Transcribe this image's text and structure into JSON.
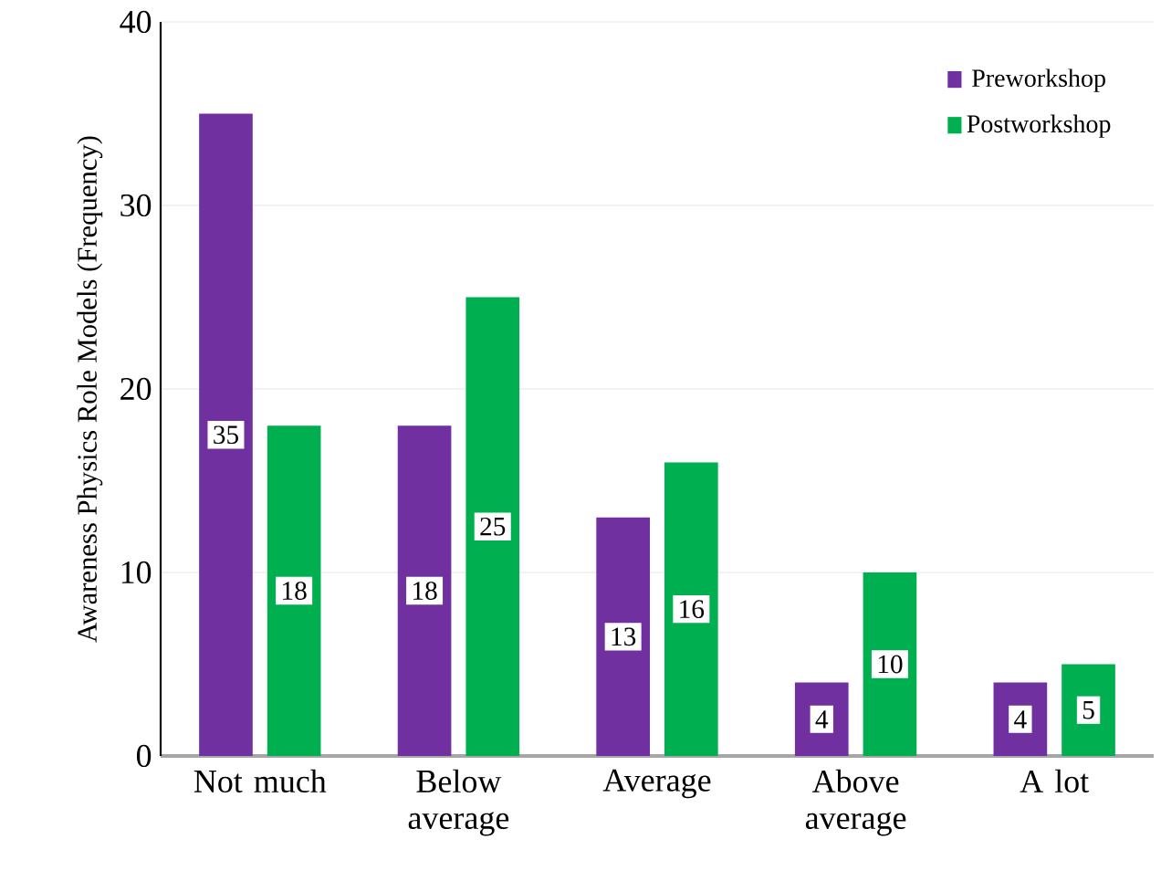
{
  "chart_data": {
    "type": "bar",
    "ylabel": "Awareness Physics Role Models (Frequency)",
    "categories": [
      "Not much",
      "Below average",
      "Average",
      "Above average",
      "A lot"
    ],
    "series": [
      {
        "name": "Preworkshop",
        "color": "#7030a0",
        "values": [
          35,
          18,
          13,
          4,
          4
        ]
      },
      {
        "name": "Postworkshop",
        "color": "#00b050",
        "values": [
          18,
          25,
          16,
          10,
          5
        ]
      }
    ],
    "ylim": [
      0,
      40
    ],
    "yticks": [
      0,
      10,
      20,
      30,
      40
    ],
    "grid": "y",
    "legend": "top right",
    "data_labels": true
  }
}
